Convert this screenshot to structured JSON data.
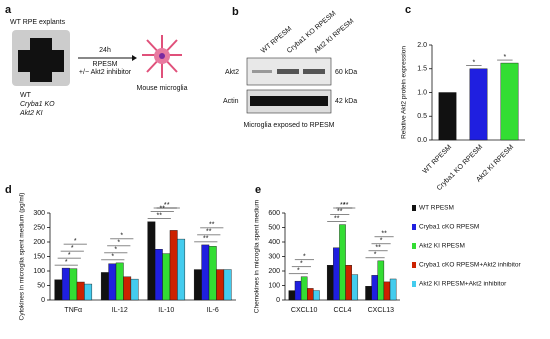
{
  "panels": {
    "a": {
      "letter": "a",
      "title": "WT RPE explants",
      "time": "24h",
      "medium": "RPESM",
      "inhibitor": "+/− Akt2 inhibitor",
      "target": "Mouse microglia",
      "genotypes": [
        "WT",
        "Cryba1 KO",
        "Akt2 KI"
      ]
    },
    "b": {
      "letter": "b",
      "lanes": [
        "WT RPESM",
        "Cryba1 KO RPESM",
        "Akt2 KI RPESM"
      ],
      "rows": [
        "Akt2",
        "Actin"
      ],
      "sizes": [
        "60 kDa",
        "42 kDa"
      ],
      "caption": "Microglia exposed to RPESM"
    }
  },
  "chart_data": [
    {
      "type": "bar",
      "letter": "c",
      "y_label": "Relative Akt2 protein expression",
      "categories": [
        "WT RPESM",
        "Cryba1 KO RPESM",
        "Akt2 KI RPESM"
      ],
      "values": [
        1.0,
        1.5,
        1.62
      ],
      "colors": [
        "#111111",
        "#1f1fe0",
        "#33dd33"
      ],
      "ylim": [
        0,
        2.0
      ],
      "yticks": [
        {
          "value": 0,
          "label": "0.0"
        },
        0.5,
        {
          "value": 1,
          "label": "1.0"
        },
        1.5,
        {
          "value": 2,
          "label": "2.0"
        }
      ],
      "annotations": [
        [],
        [
          "*"
        ],
        [
          "*"
        ]
      ]
    },
    {
      "type": "grouped-bar",
      "letter": "d",
      "y_label": "Cytokines in microglia spent medium (pg/ml)",
      "categories": [
        "TNFα",
        "IL-12",
        "IL-10",
        "IL-6"
      ],
      "series": [
        {
          "color": "#111111",
          "values": [
            70,
            95,
            270,
            105
          ]
        },
        {
          "color": "#1f1fe0",
          "values": [
            110,
            125,
            175,
            190
          ]
        },
        {
          "color": "#33dd33",
          "values": [
            108,
            128,
            160,
            185
          ]
        },
        {
          "color": "#cc2200",
          "values": [
            62,
            80,
            240,
            105
          ]
        },
        {
          "color": "#44ccee",
          "values": [
            55,
            72,
            210,
            105
          ]
        }
      ],
      "ylim": [
        0,
        300
      ],
      "yticks": [
        0,
        50,
        100,
        150,
        200,
        250,
        300
      ],
      "annotations": [
        [
          "*",
          "*",
          "*",
          "*"
        ],
        [
          "*",
          "*",
          "*",
          "*"
        ],
        [
          "**",
          "**",
          "*",
          "*"
        ],
        [
          "**",
          "**",
          "**"
        ]
      ]
    },
    {
      "type": "grouped-bar",
      "letter": "e",
      "y_label": "Chemokines in microglia spent medium",
      "categories": [
        "CXCL10",
        "CCL4",
        "CXCL13"
      ],
      "series": [
        {
          "name": "WT RPESM",
          "color": "#111111",
          "values": [
            65,
            240,
            95
          ]
        },
        {
          "name": "Cryba1 cKO RPESM",
          "color": "#1f1fe0",
          "values": [
            130,
            360,
            170
          ]
        },
        {
          "name": "Akt2 KI RPESM",
          "color": "#33dd33",
          "values": [
            160,
            520,
            270
          ]
        },
        {
          "name": "Cryba1 cKO RPESM+Akt2 inhibitor",
          "color": "#cc2200",
          "values": [
            80,
            240,
            125
          ]
        },
        {
          "name": "Akt2 KI RPESM+Akt2 inhibitor",
          "color": "#44ccee",
          "values": [
            65,
            175,
            145
          ]
        }
      ],
      "ylim": [
        0,
        600
      ],
      "yticks": [
        0,
        100,
        200,
        300,
        400,
        500,
        600
      ],
      "annotations": [
        [
          "*",
          "*",
          "*"
        ],
        [
          "**",
          "**",
          "**",
          "**"
        ],
        [
          "*",
          "**",
          "*",
          "**"
        ]
      ]
    }
  ]
}
